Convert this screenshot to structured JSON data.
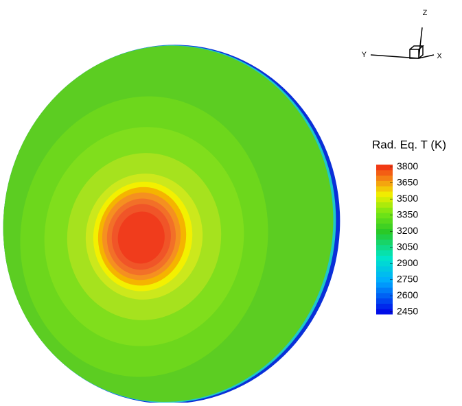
{
  "legend": {
    "title": "Rad. Eq. T (K)",
    "ticks": [
      3800,
      3650,
      3500,
      3350,
      3200,
      3050,
      2900,
      2750,
      2600,
      2450
    ],
    "lim": [
      2430,
      3820
    ]
  },
  "axes": {
    "x": "X",
    "y": "Y",
    "z": "Z"
  }
}
